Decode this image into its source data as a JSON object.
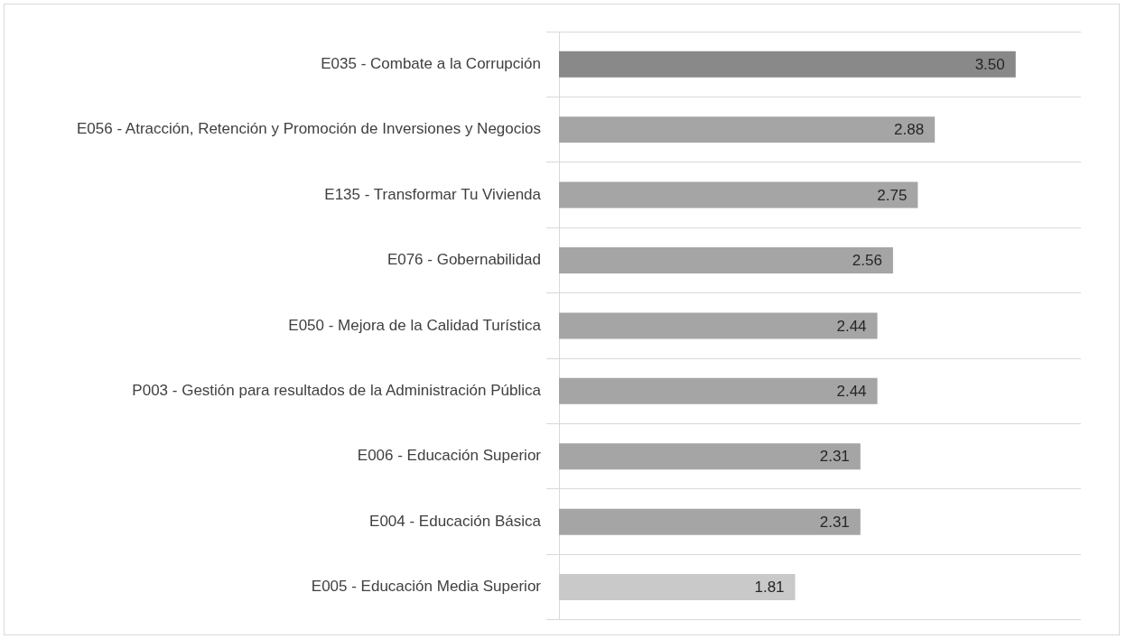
{
  "chart_data": {
    "type": "bar",
    "orientation": "horizontal",
    "categories": [
      "E035 - Combate a la Corrupción",
      "E056 - Atracción, Retención y Promoción de Inversiones y Negocios",
      "E135 - Transformar Tu Vivienda",
      "E076 - Gobernabilidad",
      "E050 - Mejora de la Calidad Turística",
      "P003 - Gestión para resultados de la Administración Pública",
      "E006 - Educación Superior",
      "E004 - Educación Básica",
      "E005 - Educación Media Superior"
    ],
    "values": [
      3.5,
      2.88,
      2.75,
      2.56,
      2.44,
      2.44,
      2.31,
      2.31,
      1.81
    ],
    "colors": [
      "#898989",
      "#a5a5a5",
      "#a5a5a5",
      "#a5a5a5",
      "#a5a5a5",
      "#a5a5a5",
      "#a5a5a5",
      "#a5a5a5",
      "#c9c9c9"
    ],
    "value_labels": [
      "3.50",
      "2.88",
      "2.75",
      "2.56",
      "2.44",
      "2.44",
      "2.31",
      "2.31",
      "1.81"
    ],
    "grid": "y",
    "legend": false
  }
}
